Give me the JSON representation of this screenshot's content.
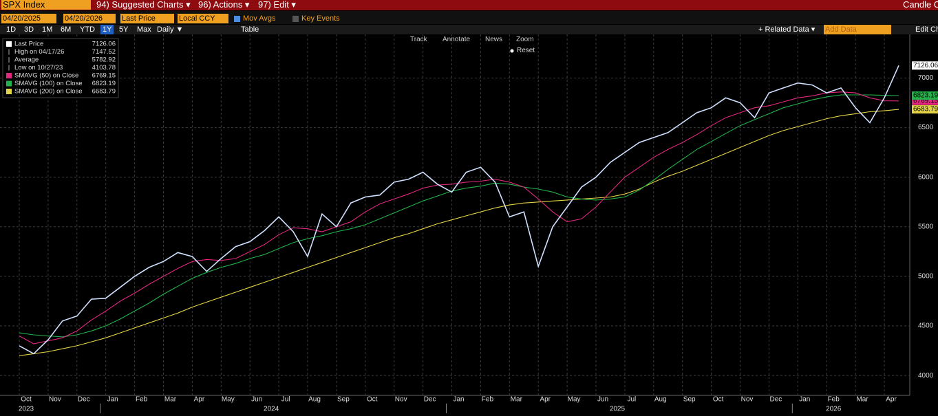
{
  "ui": {
    "ticker": "SPX Index",
    "menus": [
      "94) Suggested Charts ▾",
      "96) Actions ▾",
      "97) Edit ▾"
    ],
    "right_title": "Candle C",
    "start_date": "04/20/2025",
    "end_date": "04/20/2026",
    "field": "Last Price",
    "currency": "Local CCY",
    "mov_avgs": "Mov Avgs",
    "key_events": "Key Events",
    "periods": [
      "1D",
      "3D",
      "1M",
      "6M",
      "YTD",
      "1Y",
      "5Y",
      "Max"
    ],
    "frequency": "Daily ▼",
    "table": "Table",
    "related": "+ Related Data ▾",
    "add_data": "Add Data",
    "edit": "Edit Ch",
    "tools": [
      "Track",
      "Annotate",
      "News",
      "Zoom"
    ],
    "reset": "Reset"
  },
  "chart_data": {
    "type": "line",
    "categories": [
      "Oct",
      null,
      "Nov",
      null,
      "Dec",
      null,
      "Jan",
      null,
      "Feb",
      null,
      "Mar",
      null,
      "Apr",
      null,
      "May",
      null,
      "Jun",
      null,
      "Jul",
      null,
      "Aug",
      null,
      "Sep",
      null,
      "Oct",
      null,
      "Nov",
      null,
      "Dec",
      null,
      "Jan",
      null,
      "Feb",
      null,
      "Mar",
      null,
      "Apr",
      null,
      "May",
      null,
      "Jun",
      null,
      "Jul",
      null,
      "Aug",
      null,
      "Sep",
      null,
      "Oct",
      null,
      "Nov",
      null,
      "Dec",
      null,
      "Jan",
      null,
      "Feb",
      null,
      "Mar",
      null,
      "Apr",
      null
    ],
    "year_labels": [
      "2023",
      null,
      null,
      null,
      null,
      null,
      null,
      null,
      null,
      null,
      null,
      null,
      null,
      null,
      null,
      null,
      null,
      "2024",
      null,
      null,
      null,
      null,
      null,
      null,
      null,
      null,
      null,
      null,
      null,
      null,
      null,
      null,
      null,
      null,
      null,
      null,
      null,
      null,
      null,
      null,
      null,
      "2025",
      null,
      null,
      null,
      null,
      null,
      null,
      null,
      null,
      null,
      null,
      null,
      null,
      null,
      null,
      "2026",
      null,
      null,
      null,
      null,
      null
    ],
    "series": [
      {
        "name": "Last Price",
        "color": "#cfe0ff",
        "values": [
          4300,
          4220,
          4360,
          4550,
          4600,
          4770,
          4780,
          4890,
          5000,
          5090,
          5150,
          5240,
          5200,
          5050,
          5180,
          5300,
          5350,
          5460,
          5600,
          5450,
          5200,
          5630,
          5500,
          5740,
          5800,
          5820,
          5950,
          5980,
          6050,
          5930,
          5850,
          6050,
          6100,
          5950,
          5600,
          5650,
          5100,
          5500,
          5700,
          5900,
          6000,
          6150,
          6250,
          6350,
          6400,
          6450,
          6550,
          6650,
          6700,
          6800,
          6750,
          6600,
          6850,
          6900,
          6950,
          6930,
          6850,
          6900,
          6700,
          6550,
          6800,
          7126.06
        ]
      },
      {
        "name": "SMAVG (50)  on Close",
        "color": "#e2287f",
        "values": [
          4400,
          4320,
          4350,
          4380,
          4450,
          4560,
          4650,
          4750,
          4830,
          4920,
          5000,
          5080,
          5150,
          5170,
          5160,
          5180,
          5250,
          5320,
          5420,
          5490,
          5480,
          5450,
          5500,
          5550,
          5650,
          5730,
          5780,
          5830,
          5890,
          5920,
          5930,
          5950,
          5960,
          5980,
          5950,
          5900,
          5780,
          5650,
          5550,
          5580,
          5700,
          5850,
          6000,
          6100,
          6200,
          6280,
          6350,
          6430,
          6520,
          6600,
          6650,
          6700,
          6720,
          6760,
          6800,
          6820,
          6850,
          6860,
          6850,
          6800,
          6770,
          6769.15
        ]
      },
      {
        "name": "SMAVG (100)  on Close",
        "color": "#22b34a",
        "values": [
          4430,
          4410,
          4400,
          4390,
          4410,
          4450,
          4500,
          4570,
          4650,
          4730,
          4820,
          4900,
          4980,
          5040,
          5090,
          5130,
          5180,
          5220,
          5280,
          5340,
          5380,
          5410,
          5450,
          5480,
          5520,
          5580,
          5640,
          5700,
          5760,
          5810,
          5860,
          5890,
          5910,
          5940,
          5930,
          5900,
          5880,
          5850,
          5800,
          5780,
          5770,
          5780,
          5800,
          5870,
          5970,
          6080,
          6180,
          6280,
          6360,
          6440,
          6520,
          6580,
          6640,
          6700,
          6740,
          6780,
          6810,
          6830,
          6830,
          6830,
          6825,
          6823.19
        ]
      },
      {
        "name": "SMAVG (200)  on Close",
        "color": "#e3d444",
        "values": [
          4200,
          4220,
          4240,
          4270,
          4300,
          4340,
          4380,
          4430,
          4480,
          4530,
          4580,
          4630,
          4690,
          4740,
          4790,
          4840,
          4890,
          4940,
          4990,
          5040,
          5090,
          5140,
          5190,
          5240,
          5290,
          5340,
          5390,
          5430,
          5480,
          5530,
          5570,
          5610,
          5650,
          5690,
          5720,
          5740,
          5750,
          5760,
          5770,
          5780,
          5790,
          5800,
          5830,
          5880,
          5950,
          6010,
          6060,
          6120,
          6180,
          6240,
          6300,
          6360,
          6420,
          6470,
          6510,
          6550,
          6590,
          6620,
          6640,
          6660,
          6670,
          6683.79
        ]
      }
    ],
    "stats": [
      {
        "label": "High on 04/17/26",
        "value": 7147.52
      },
      {
        "label": "Average",
        "value": 5782.92
      },
      {
        "label": "Low on 10/27/23",
        "value": 4103.78
      }
    ],
    "ylim": [
      3800,
      7440
    ],
    "yticks": [
      4000,
      4500,
      5000,
      5500,
      6000,
      6500,
      7000
    ],
    "grid": true
  }
}
